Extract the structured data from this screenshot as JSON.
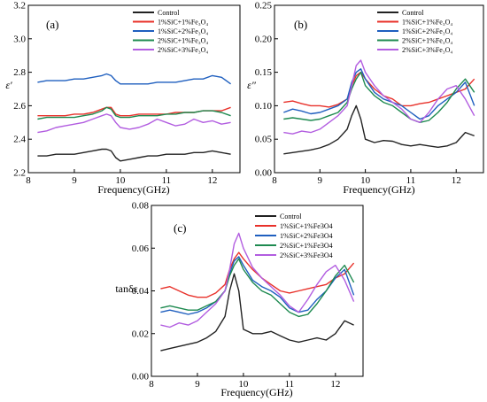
{
  "chart_data": [
    {
      "type": "line",
      "panel_label": "(a)",
      "xlabel": "Frequency(GHz)",
      "ylabel": "ε′",
      "xlim": [
        8,
        12.6
      ],
      "ylim": [
        2.2,
        3.2
      ],
      "xticks": [
        8,
        9,
        10,
        11,
        12
      ],
      "yticks": [
        2.2,
        2.4,
        2.6,
        2.8,
        3.0,
        3.2
      ],
      "legend_position": "top-right",
      "x": [
        8.2,
        8.4,
        8.6,
        8.8,
        9.0,
        9.2,
        9.4,
        9.6,
        9.7,
        9.8,
        9.9,
        10.0,
        10.2,
        10.4,
        10.6,
        10.8,
        11.0,
        11.2,
        11.4,
        11.6,
        11.8,
        12.0,
        12.2,
        12.4
      ],
      "series": [
        {
          "name": "Control",
          "color": "#222222",
          "values": [
            2.3,
            2.3,
            2.31,
            2.31,
            2.31,
            2.32,
            2.33,
            2.34,
            2.34,
            2.33,
            2.29,
            2.27,
            2.28,
            2.29,
            2.3,
            2.3,
            2.31,
            2.31,
            2.31,
            2.32,
            2.32,
            2.33,
            2.32,
            2.31
          ]
        },
        {
          "name": "1%SiC+1%Fe₃O₄",
          "color": "#e8312a",
          "values": [
            2.54,
            2.54,
            2.54,
            2.54,
            2.55,
            2.55,
            2.56,
            2.58,
            2.59,
            2.59,
            2.55,
            2.54,
            2.54,
            2.55,
            2.55,
            2.55,
            2.55,
            2.56,
            2.56,
            2.56,
            2.57,
            2.57,
            2.57,
            2.59
          ]
        },
        {
          "name": "1%SiC+2%Fe₃O₄",
          "color": "#1f5fbf",
          "values": [
            2.74,
            2.75,
            2.75,
            2.75,
            2.76,
            2.76,
            2.77,
            2.78,
            2.79,
            2.78,
            2.75,
            2.73,
            2.73,
            2.73,
            2.73,
            2.74,
            2.74,
            2.74,
            2.75,
            2.76,
            2.76,
            2.78,
            2.77,
            2.73
          ]
        },
        {
          "name": "2%SiC+1%Fe₃O₄",
          "color": "#1e8a50",
          "values": [
            2.52,
            2.53,
            2.53,
            2.53,
            2.53,
            2.54,
            2.55,
            2.57,
            2.59,
            2.58,
            2.54,
            2.53,
            2.53,
            2.54,
            2.54,
            2.54,
            2.55,
            2.55,
            2.56,
            2.56,
            2.57,
            2.57,
            2.56,
            2.54
          ]
        },
        {
          "name": "2%SiC+3%Fe₃O₄",
          "color": "#b25de0",
          "values": [
            2.44,
            2.45,
            2.47,
            2.48,
            2.49,
            2.5,
            2.52,
            2.54,
            2.55,
            2.54,
            2.5,
            2.47,
            2.46,
            2.47,
            2.49,
            2.52,
            2.5,
            2.48,
            2.49,
            2.52,
            2.5,
            2.51,
            2.49,
            2.5
          ]
        }
      ]
    },
    {
      "type": "line",
      "panel_label": "(b)",
      "xlabel": "Frequency(GHz)",
      "ylabel": "ε″",
      "xlim": [
        8,
        12.6
      ],
      "ylim": [
        0,
        0.25
      ],
      "xticks": [
        8,
        9,
        10,
        11,
        12
      ],
      "yticks": [
        0.0,
        0.05,
        0.1,
        0.15,
        0.2,
        0.25
      ],
      "legend_position": "top-right",
      "x": [
        8.2,
        8.4,
        8.6,
        8.8,
        9.0,
        9.2,
        9.4,
        9.6,
        9.7,
        9.8,
        9.9,
        10.0,
        10.2,
        10.4,
        10.6,
        10.8,
        11.0,
        11.2,
        11.4,
        11.6,
        11.8,
        12.0,
        12.2,
        12.4
      ],
      "series": [
        {
          "name": "Control",
          "color": "#222222",
          "values": [
            0.028,
            0.03,
            0.032,
            0.034,
            0.037,
            0.042,
            0.05,
            0.065,
            0.085,
            0.1,
            0.08,
            0.05,
            0.045,
            0.048,
            0.047,
            0.042,
            0.04,
            0.042,
            0.04,
            0.038,
            0.04,
            0.045,
            0.06,
            0.055
          ]
        },
        {
          "name": "1%SiC+1%Fe₃O₄",
          "color": "#e8312a",
          "values": [
            0.105,
            0.107,
            0.103,
            0.1,
            0.1,
            0.098,
            0.102,
            0.11,
            0.13,
            0.145,
            0.15,
            0.14,
            0.125,
            0.115,
            0.11,
            0.1,
            0.1,
            0.103,
            0.105,
            0.11,
            0.115,
            0.12,
            0.125,
            0.14
          ]
        },
        {
          "name": "1%SiC+2%Fe₃O₄",
          "color": "#1f5fbf",
          "values": [
            0.09,
            0.095,
            0.092,
            0.088,
            0.09,
            0.095,
            0.1,
            0.11,
            0.135,
            0.15,
            0.155,
            0.14,
            0.12,
            0.11,
            0.105,
            0.1,
            0.09,
            0.08,
            0.085,
            0.1,
            0.11,
            0.12,
            0.135,
            0.1
          ]
        },
        {
          "name": "2%SiC+1%Fe₃O₄",
          "color": "#1e8a50",
          "values": [
            0.08,
            0.082,
            0.08,
            0.078,
            0.08,
            0.085,
            0.09,
            0.105,
            0.125,
            0.14,
            0.15,
            0.13,
            0.115,
            0.105,
            0.1,
            0.09,
            0.08,
            0.075,
            0.078,
            0.09,
            0.105,
            0.125,
            0.14,
            0.12
          ]
        },
        {
          "name": "2%SiC+3%Fe₃O₄",
          "color": "#b25de0",
          "values": [
            0.06,
            0.058,
            0.062,
            0.06,
            0.065,
            0.075,
            0.085,
            0.1,
            0.13,
            0.16,
            0.168,
            0.15,
            0.13,
            0.115,
            0.105,
            0.095,
            0.08,
            0.075,
            0.09,
            0.11,
            0.125,
            0.13,
            0.11,
            0.085
          ]
        }
      ]
    },
    {
      "type": "line",
      "panel_label": "(c)",
      "xlabel": "Frequency(GHz)",
      "ylabel": "tanδε",
      "xlim": [
        8,
        12.6
      ],
      "ylim": [
        0,
        0.08
      ],
      "xticks": [
        8,
        9,
        10,
        11,
        12
      ],
      "yticks": [
        0.0,
        0.02,
        0.04,
        0.06,
        0.08
      ],
      "legend_position": "top-right",
      "x": [
        8.2,
        8.4,
        8.6,
        8.8,
        9.0,
        9.2,
        9.4,
        9.6,
        9.7,
        9.8,
        9.9,
        10.0,
        10.2,
        10.4,
        10.6,
        10.8,
        11.0,
        11.2,
        11.4,
        11.6,
        11.8,
        12.0,
        12.2,
        12.4
      ],
      "series": [
        {
          "name": "Control",
          "color": "#222222",
          "values": [
            0.012,
            0.013,
            0.014,
            0.015,
            0.016,
            0.018,
            0.021,
            0.028,
            0.04,
            0.048,
            0.04,
            0.022,
            0.02,
            0.02,
            0.021,
            0.019,
            0.017,
            0.016,
            0.017,
            0.018,
            0.017,
            0.02,
            0.026,
            0.024
          ]
        },
        {
          "name": "1%SiC+1%Fe3O4",
          "color": "#e8312a",
          "values": [
            0.041,
            0.042,
            0.04,
            0.038,
            0.037,
            0.037,
            0.039,
            0.043,
            0.05,
            0.055,
            0.058,
            0.055,
            0.05,
            0.046,
            0.043,
            0.04,
            0.039,
            0.04,
            0.041,
            0.042,
            0.043,
            0.046,
            0.048,
            0.053
          ]
        },
        {
          "name": "1%SiC+2%Fe3O4",
          "color": "#1f5fbf",
          "values": [
            0.03,
            0.031,
            0.03,
            0.029,
            0.03,
            0.032,
            0.035,
            0.04,
            0.048,
            0.054,
            0.056,
            0.052,
            0.045,
            0.042,
            0.04,
            0.037,
            0.032,
            0.03,
            0.031,
            0.036,
            0.04,
            0.046,
            0.05,
            0.038
          ]
        },
        {
          "name": "2%SiC+1%Fe3O4",
          "color": "#1e8a50",
          "values": [
            0.032,
            0.033,
            0.032,
            0.031,
            0.031,
            0.033,
            0.035,
            0.04,
            0.047,
            0.052,
            0.055,
            0.05,
            0.044,
            0.04,
            0.038,
            0.034,
            0.03,
            0.028,
            0.029,
            0.034,
            0.04,
            0.047,
            0.052,
            0.044
          ]
        },
        {
          "name": "2%SiC+3%Fe3O4",
          "color": "#b25de0",
          "values": [
            0.024,
            0.023,
            0.025,
            0.024,
            0.026,
            0.03,
            0.034,
            0.04,
            0.05,
            0.062,
            0.067,
            0.06,
            0.051,
            0.046,
            0.042,
            0.038,
            0.033,
            0.03,
            0.036,
            0.043,
            0.049,
            0.052,
            0.045,
            0.035
          ]
        }
      ]
    }
  ]
}
